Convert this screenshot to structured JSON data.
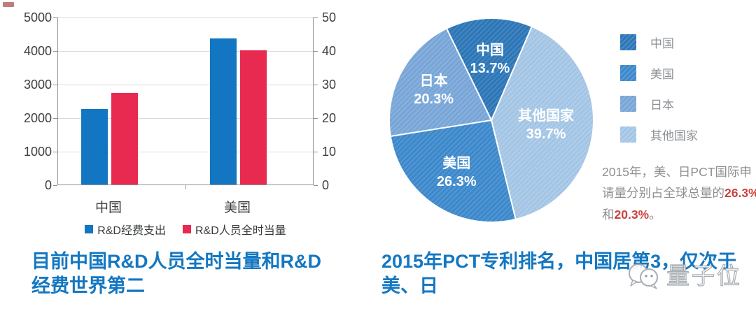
{
  "captions": {
    "left": "目前中国R&D人员全时当量和R&D经费世界第二",
    "right": "2015年PCT专利排名，中国居第3，仅次于美、日",
    "color": "#1477c2"
  },
  "watermark": {
    "label": "量子位"
  },
  "annotation": {
    "segments": [
      {
        "text": "2015年，美、日PCT国际申请量分别占全球总量的",
        "highlight": false
      },
      {
        "text": "26.3%",
        "highlight": true
      },
      {
        "text": "和",
        "highlight": false
      },
      {
        "text": "20.3%",
        "highlight": true
      },
      {
        "text": "。",
        "highlight": false
      }
    ],
    "text_color": "#8f8f8f",
    "highlight_color": "#c9443e"
  },
  "chart_data": [
    {
      "type": "bar",
      "title": "",
      "categories": [
        "中国",
        "美国"
      ],
      "series": [
        {
          "name": "R&D经费支出",
          "color": "#1276c2",
          "values": [
            2250,
            4350
          ]
        },
        {
          "name": "R&D人员全时当量",
          "color": "#e82a50",
          "values": [
            2720,
            4000
          ]
        }
      ],
      "left_axis": {
        "min": 0,
        "max": 5000,
        "step": 1000,
        "ticks": [
          "5000",
          "4000",
          "3000",
          "2000",
          "1000",
          "0"
        ]
      },
      "right_axis": {
        "min": 0,
        "max": 50,
        "step": 10,
        "ticks": [
          "50",
          "40",
          "30",
          "20",
          "10",
          "0"
        ]
      },
      "grid": true,
      "legend_position": "bottom"
    },
    {
      "type": "pie",
      "title": "",
      "start_angle_deg": -26,
      "slices": [
        {
          "label": "中国",
          "value": 13.7,
          "color": "#2e78ba",
          "label_r": 0.6
        },
        {
          "label": "其他国家",
          "value": 39.7,
          "color": "#a6c8e8",
          "label_r": 0.54
        },
        {
          "label": "美国",
          "value": 26.3,
          "color": "#3e8bce",
          "label_r": 0.62
        },
        {
          "label": "日本",
          "value": 20.3,
          "color": "#7aa8da",
          "label_r": 0.64
        }
      ],
      "value_suffix": "%",
      "legend_order": [
        "中国",
        "美国",
        "日本",
        "其他国家"
      ],
      "legend_position": "right"
    }
  ]
}
